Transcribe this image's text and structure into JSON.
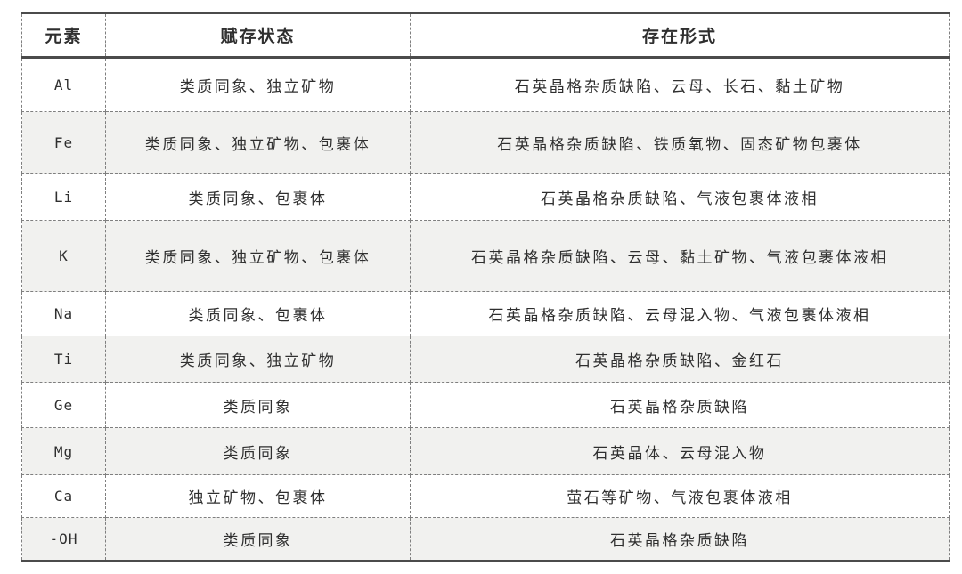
{
  "table": {
    "title_semantic": "quartz-impurity-element-occurrence-table",
    "columns": [
      "元素",
      "赋存状态",
      "存在形式"
    ],
    "rows": [
      {
        "element": "Al",
        "state": "类质同象、独立矿物",
        "form": "石英晶格杂质缺陷、云母、长石、黏土矿物"
      },
      {
        "element": "Fe",
        "state": "类质同象、独立矿物、包裹体",
        "form": "石英晶格杂质缺陷、铁质氧物、固态矿物包裹体"
      },
      {
        "element": "Li",
        "state": "类质同象、包裹体",
        "form": "石英晶格杂质缺陷、气液包裹体液相"
      },
      {
        "element": "K",
        "state": "类质同象、独立矿物、包裹体",
        "form": "石英晶格杂质缺陷、云母、黏土矿物、气液包裹体液相"
      },
      {
        "element": "Na",
        "state": "类质同象、包裹体",
        "form": "石英晶格杂质缺陷、云母混入物、气液包裹体液相"
      },
      {
        "element": "Ti",
        "state": "类质同象、独立矿物",
        "form": "石英晶格杂质缺陷、金红石"
      },
      {
        "element": "Ge",
        "state": "类质同象",
        "form": "石英晶格杂质缺陷"
      },
      {
        "element": "Mg",
        "state": "类质同象",
        "form": "石英晶体、云母混入物"
      },
      {
        "element": "Ca",
        "state": "独立矿物、包裹体",
        "form": "萤石等矿物、气液包裹体液相"
      },
      {
        "element": "-OH",
        "state": "类质同象",
        "form": "石英晶格杂质缺陷"
      }
    ],
    "colors": {
      "row_alt_bg": "#f1f1ef",
      "border_heavy": "#4b4b4b",
      "border_dashed": "#7f7f7f",
      "text": "#2f2f2f"
    }
  }
}
